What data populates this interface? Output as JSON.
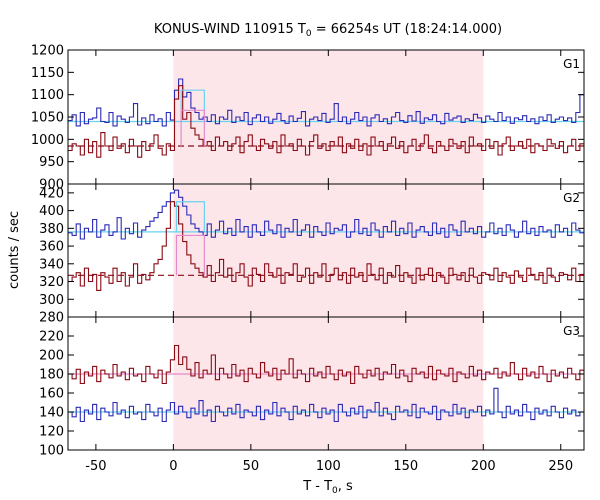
{
  "chart_data": {
    "type": "line",
    "title": "KONUS-WIND 110915 T",
    "title_sub": "0",
    "title_rest": " = 66254s UT (18:24:14.000)",
    "xlabel": "T - T",
    "xlabel_sub": "0",
    "xlabel_rest": ", s",
    "ylabel": "counts / sec",
    "xlim": [
      -68,
      265
    ],
    "x_ticks": [
      -50,
      0,
      50,
      100,
      150,
      200,
      250
    ],
    "highlight_interval": [
      0,
      200
    ],
    "highlight_color": "#fde6ea",
    "colors": {
      "blue": "#2b2bb8",
      "red": "#8b0a14",
      "cyan": "#66d4f0",
      "pink": "#e48acb"
    },
    "panels": [
      {
        "name": "G1",
        "ylim": [
          900,
          1200
        ],
        "y_ticks": [
          900,
          950,
          1000,
          1050,
          1100,
          1150,
          1200
        ],
        "y_tick_labels": [
          "900",
          "950",
          "1000",
          "1050",
          "1100",
          "1150",
          "1200"
        ],
        "bg_blue": 1040,
        "bg_red": 985,
        "peak": {
          "start": 5,
          "end": 20,
          "blue": 1110,
          "red": 1065
        },
        "series": [
          {
            "color": "blue",
            "values": [
              1042,
              1055,
              1030,
              1060,
              1035,
              1045,
              1048,
              1070,
              1040,
              1038,
              1060,
              1030,
              1052,
              1045,
              1038,
              1050,
              1080,
              1032,
              1048,
              1035,
              1055,
              1040,
              1046,
              1030,
              1060,
              1043,
              1110,
              1135,
              1095,
              1105,
              1070,
              1060,
              1045,
              1050,
              1040,
              1055,
              1035,
              1050,
              1045,
              1065,
              1038,
              1050,
              1042,
              1060,
              1033,
              1048,
              1055,
              1040,
              1050,
              1036,
              1045,
              1058,
              1042,
              1036,
              1052,
              1040,
              1047,
              1062,
              1030,
              1045,
              1050,
              1042,
              1058,
              1038,
              1045,
              1080,
              1040,
              1050,
              1035,
              1045,
              1060,
              1042,
              1050,
              1030,
              1048,
              1055,
              1040,
              1046,
              1035,
              1050,
              1060,
              1042,
              1038,
              1053,
              1041,
              1062,
              1036,
              1048,
              1044,
              1055,
              1040,
              1035,
              1058,
              1043,
              1048,
              1052,
              1038,
              1046,
              1042,
              1056,
              1048,
              1038,
              1052,
              1045,
              1040,
              1060,
              1042,
              1050,
              1036,
              1048,
              1044,
              1053,
              1040,
              1046,
              1035,
              1050,
              1042,
              1055,
              1038,
              1045,
              1050,
              1042,
              1048,
              1038,
              1060,
              1100
            ]
          },
          {
            "color": "red",
            "values": [
              975,
              990,
              985,
              965,
              1000,
              970,
              995,
              960,
              1015,
              985,
              975,
              1005,
              980,
              990,
              970,
              1000,
              985,
              960,
              995,
              975,
              990,
              1010,
              980,
              965,
              990,
              975,
              1090,
              1120,
              1045,
              1060,
              1025,
              1010,
              1000,
              985,
              995,
              975,
              1005,
              985,
              995,
              975,
              990,
              1005,
              970,
              995,
              1010,
              985,
              975,
              1000,
              990,
              980,
              995,
              970,
              1010,
              985,
              990,
              975,
              1000,
              985,
              965,
              995,
              1010,
              980,
              990,
              975,
              995,
              985,
              1005,
              970,
              990,
              980,
              1000,
              975,
              990,
              965,
              1005,
              985,
              995,
              975,
              990,
              1005,
              980,
              995,
              970,
              985,
              1000,
              975,
              990,
              1010,
              980,
              970,
              995,
              985,
              975,
              1000,
              990,
              980,
              995,
              970,
              1005,
              985,
              990,
              975,
              1000,
              980,
              995,
              965,
              990,
              1005,
              975,
              985,
              995,
              980,
              1000,
              970,
              990,
              985,
              975,
              1000,
              990,
              980,
              995,
              970,
              985,
              1000,
              975,
              990
            ]
          }
        ]
      },
      {
        "name": "G2",
        "ylim": [
          280,
          430
        ],
        "y_ticks": [
          280,
          300,
          320,
          340,
          360,
          380,
          400,
          420
        ],
        "y_tick_labels": [
          "280",
          "300",
          "320",
          "340",
          "360",
          "380",
          "400",
          "420"
        ],
        "bg_blue": 376,
        "bg_red": 327,
        "peak": {
          "start": 2,
          "end": 20,
          "blue": 410,
          "red": 372
        },
        "series": [
          {
            "color": "blue",
            "values": [
              375,
              372,
              385,
              368,
              380,
              376,
              390,
              370,
              378,
              384,
              372,
              376,
              392,
              368,
              380,
              374,
              386,
              370,
              378,
              382,
              388,
              392,
              398,
              405,
              410,
              420,
              423,
              415,
              405,
              395,
              385,
              380,
              376,
              372,
              385,
              370,
              378,
              388,
              374,
              380,
              372,
              390,
              376,
              382,
              370,
              384,
              376,
              372,
              388,
              378,
              374,
              384,
              370,
              380,
              376,
              390,
              372,
              378,
              384,
              370,
              382,
              376,
              372,
              386,
              374,
              380,
              378,
              384,
              370,
              376,
              390,
              374,
              380,
              372,
              386,
              378,
              370,
              382,
              376,
              388,
              372,
              380,
              374,
              386,
              370,
              378,
              382,
              376,
              372,
              386,
              374,
              380,
              370,
              384,
              378,
              372,
              388,
              376,
              380,
              374,
              382,
              370,
              376,
              386,
              374,
              380,
              372,
              384,
              378,
              370,
              376,
              388,
              374,
              380,
              372,
              382,
              376,
              378,
              370,
              384,
              376,
              380,
              372,
              386,
              378,
              375
            ]
          },
          {
            "color": "red",
            "values": [
              320,
              325,
              330,
              315,
              335,
              320,
              328,
              310,
              330,
              325,
              318,
              335,
              320,
              330,
              315,
              325,
              340,
              318,
              328,
              322,
              330,
              340,
              345,
              360,
              380,
              410,
              405,
              385,
              365,
              350,
              340,
              335,
              330,
              325,
              338,
              320,
              330,
              345,
              325,
              335,
              320,
              330,
              340,
              325,
              315,
              335,
              328,
              320,
              340,
              330,
              325,
              335,
              318,
              330,
              328,
              340,
              320,
              325,
              335,
              318,
              330,
              325,
              340,
              320,
              328,
              335,
              322,
              330,
              318,
              335,
              325,
              330,
              320,
              340,
              328,
              322,
              335,
              318,
              330,
              325,
              338,
              320,
              330,
              325,
              318,
              335,
              322,
              328,
              335,
              320,
              330,
              325,
              318,
              335,
              328,
              322,
              330,
              320,
              335,
              325,
              318,
              330,
              328,
              322,
              335,
              320,
              330,
              325,
              318,
              332,
              325,
              320,
              335,
              328,
              322,
              330,
              318,
              335,
              325,
              320,
              330,
              328,
              322,
              335,
              320,
              328
            ]
          }
        ]
      },
      {
        "name": "G3",
        "ylim": [
          100,
          240
        ],
        "y_ticks": [
          100,
          120,
          140,
          160,
          180,
          200,
          220
        ],
        "y_tick_labels": [
          "100",
          "120",
          "140",
          "160",
          "180",
          "200",
          "220"
        ],
        "bg_blue": 140,
        "bg_red": 180,
        "peak": null,
        "series": [
          {
            "color": "blue",
            "values": [
              140,
              135,
              145,
              130,
              142,
              138,
              148,
              132,
              144,
              140,
              136,
              150,
              138,
              142,
              134,
              146,
              138,
              140,
              132,
              148,
              140,
              136,
              144,
              130,
              142,
              150,
              138,
              146,
              140,
              134,
              144,
              138,
              152,
              136,
              142,
              130,
              146,
              140,
              136,
              144,
              138,
              148,
              134,
              142,
              140,
              136,
              146,
              132,
              142,
              138,
              150,
              136,
              144,
              140,
              132,
              146,
              138,
              142,
              136,
              148,
              140,
              134,
              144,
              138,
              142,
              130,
              148,
              140,
              136,
              144,
              138,
              146,
              134,
              142,
              140,
              150,
              136,
              144,
              138,
              132,
              146,
              140,
              142,
              136,
              148,
              134,
              144,
              140,
              138,
              146,
              132,
              142,
              140,
              136,
              148,
              138,
              144,
              134,
              142,
              140,
              146,
              136,
              142,
              138,
              165,
              140,
              134,
              146,
              138,
              142,
              136,
              148,
              140,
              132,
              144,
              138,
              142,
              136,
              146,
              140,
              134,
              144,
              138,
              142,
              136,
              140
            ]
          },
          {
            "color": "red",
            "values": [
              180,
              175,
              185,
              170,
              182,
              178,
              188,
              172,
              184,
              180,
              176,
              190,
              178,
              182,
              174,
              186,
              178,
              180,
              172,
              188,
              180,
              176,
              184,
              170,
              182,
              195,
              210,
              190,
              198,
              185,
              178,
              192,
              176,
              184,
              180,
              200,
              174,
              186,
              180,
              176,
              190,
              178,
              184,
              172,
              186,
              180,
              176,
              192,
              182,
              178,
              186,
              174,
              184,
              180,
              196,
              176,
              184,
              180,
              172,
              186,
              178,
              182,
              176,
              188,
              180,
              174,
              184,
              178,
              182,
              170,
              188,
              180,
              176,
              184,
              178,
              186,
              174,
              182,
              180,
              190,
              176,
              184,
              178,
              172,
              186,
              180,
              182,
              176,
              188,
              174,
              184,
              180,
              178,
              186,
              172,
              182,
              180,
              176,
              188,
              178,
              184,
              174,
              182,
              180,
              186,
              176,
              182,
              178,
              192,
              180,
              174,
              186,
              178,
              182,
              176,
              188,
              180,
              172,
              184,
              178,
              182,
              176,
              186,
              180,
              174,
              184
            ]
          }
        ]
      }
    ]
  }
}
